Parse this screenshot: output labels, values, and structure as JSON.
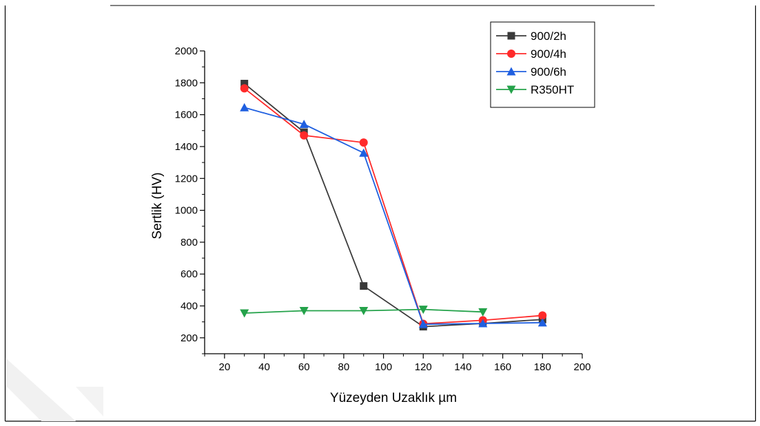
{
  "chart_data": {
    "type": "line",
    "title": "",
    "xlabel": "Yüzeyden Uzaklık µm",
    "ylabel": "Sertlik (HV)",
    "xlim": [
      10,
      200
    ],
    "ylim": [
      100,
      2000
    ],
    "x_ticks": [
      20,
      40,
      60,
      80,
      100,
      120,
      140,
      160,
      180,
      200
    ],
    "y_ticks": [
      200,
      400,
      600,
      800,
      1000,
      1200,
      1400,
      1600,
      1800,
      2000
    ],
    "grid": false,
    "legend_position": "top-right",
    "series": [
      {
        "name": "900/2h",
        "color": "#3a3a3a",
        "marker": "square",
        "x": [
          30,
          60,
          90,
          120,
          150,
          180
        ],
        "y": [
          1795,
          1490,
          525,
          270,
          290,
          315
        ]
      },
      {
        "name": "900/4h",
        "color": "#ff2a2a",
        "marker": "circle",
        "x": [
          30,
          60,
          90,
          120,
          150,
          180
        ],
        "y": [
          1765,
          1470,
          1425,
          288,
          310,
          340
        ]
      },
      {
        "name": "900/6h",
        "color": "#1f5fe0",
        "marker": "triangle-up",
        "x": [
          30,
          60,
          90,
          120,
          150,
          180
        ],
        "y": [
          1645,
          1540,
          1360,
          285,
          290,
          295
        ]
      },
      {
        "name": "R350HT",
        "color": "#24a24a",
        "marker": "triangle-down",
        "x": [
          30,
          60,
          90,
          120,
          150
        ],
        "y": [
          355,
          370,
          370,
          378,
          362
        ]
      }
    ]
  }
}
